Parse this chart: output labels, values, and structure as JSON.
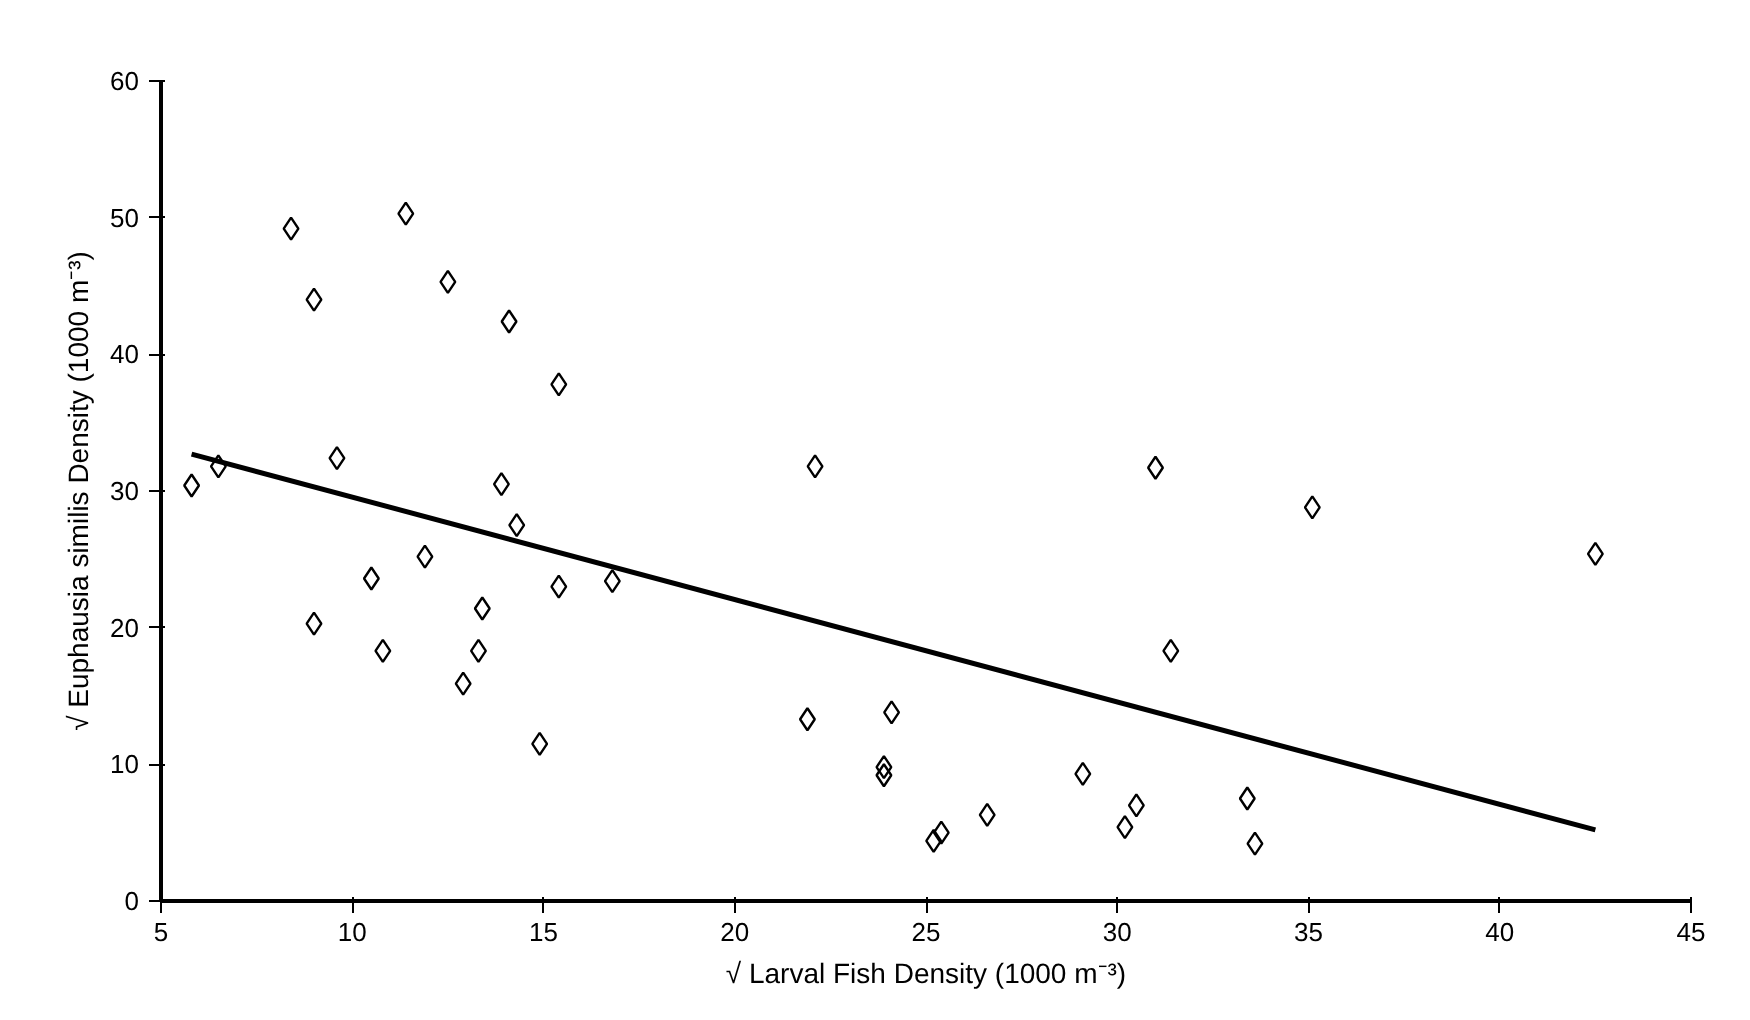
{
  "chart_data": {
    "type": "scatter",
    "xlabel": "√ Larval Fish Density (1000 m⁻³)",
    "ylabel": "√ Euphausia similis Density (1000 m⁻³)",
    "xlim": [
      5,
      45
    ],
    "ylim": [
      0,
      60
    ],
    "xticks": [
      5,
      10,
      15,
      20,
      25,
      30,
      35,
      40,
      45
    ],
    "yticks": [
      0,
      10,
      20,
      30,
      40,
      50,
      60
    ],
    "grid": false,
    "marker": "diamond",
    "series": [
      {
        "color": "#000000",
        "x": [
          5.8,
          6.5,
          8.4,
          9.0,
          9.0,
          9.6,
          10.5,
          10.8,
          11.4,
          11.9,
          12.5,
          12.9,
          13.3,
          13.4,
          13.9,
          14.1,
          14.3,
          14.9,
          15.4,
          15.4,
          16.8,
          21.9,
          22.1,
          23.9,
          23.9,
          24.1,
          25.2,
          25.4,
          26.6,
          29.1,
          30.2,
          30.5,
          31.0,
          31.4,
          33.4,
          33.6,
          35.1,
          42.5
        ],
        "values": [
          30.4,
          31.8,
          49.2,
          44.0,
          20.3,
          32.4,
          23.6,
          18.3,
          50.3,
          25.2,
          45.3,
          15.9,
          18.3,
          21.4,
          30.5,
          42.4,
          27.5,
          11.5,
          37.8,
          23.0,
          23.4,
          13.3,
          31.8,
          9.8,
          9.2,
          13.8,
          4.4,
          5.0,
          6.3,
          9.3,
          5.4,
          7.0,
          31.7,
          18.3,
          7.5,
          4.2,
          28.8,
          25.4
        ]
      },
      {
        "type": "line",
        "color": "#000000",
        "marker": "none",
        "line_style": "solid",
        "x": [
          5.8,
          42.5
        ],
        "values": [
          32.7,
          5.2
        ]
      }
    ]
  }
}
